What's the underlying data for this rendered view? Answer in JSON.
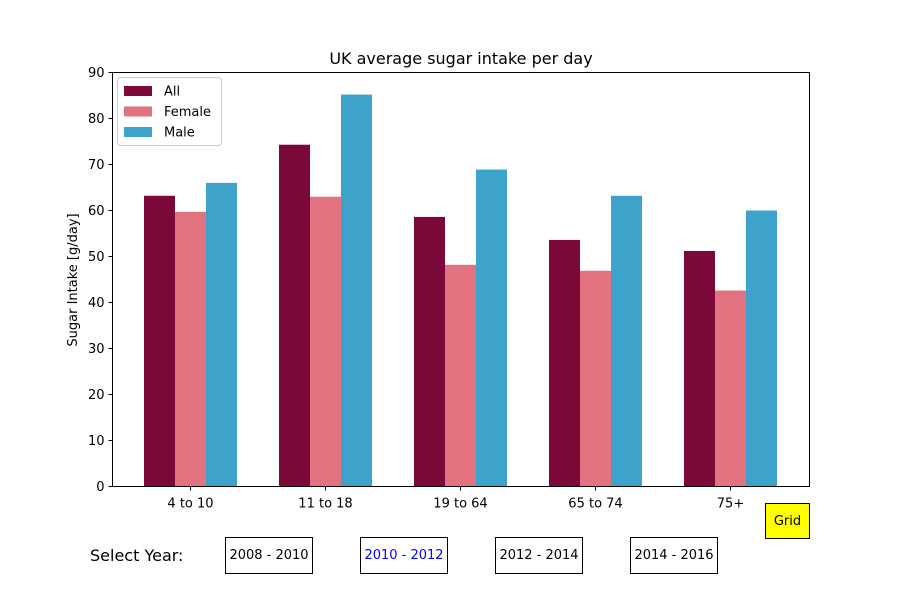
{
  "chart_data": {
    "type": "bar",
    "title": "UK average sugar intake per day",
    "xlabel": "",
    "ylabel": "Sugar Intake [g/day]",
    "ylim": [
      0,
      90
    ],
    "yticks": [
      "0",
      "10",
      "20",
      "30",
      "40",
      "50",
      "60",
      "70",
      "80",
      "90"
    ],
    "categories": [
      "4 to 10",
      "11 to 18",
      "19 to 64",
      "65 to 74",
      "75+"
    ],
    "series": [
      {
        "name": "All",
        "color": "#7a0838",
        "values": [
          63.2,
          74.3,
          58.6,
          53.6,
          51.2
        ]
      },
      {
        "name": "Female",
        "color": "#e27280",
        "values": [
          59.7,
          63.0,
          48.2,
          46.9,
          42.6
        ]
      },
      {
        "name": "Male",
        "color": "#3ea3cb",
        "values": [
          66.0,
          85.2,
          68.9,
          63.2,
          60.0
        ]
      }
    ],
    "legend_position": "top-left",
    "grid": false
  },
  "controls": {
    "select_label": "Select Year:",
    "grid_label": "Grid",
    "years": [
      "2008 - 2010",
      "2010 - 2012",
      "2012 - 2014",
      "2014 - 2016"
    ],
    "active_year": "2010 - 2012",
    "active_color": "#0000ff",
    "grid_button_color": "#ffff00"
  }
}
